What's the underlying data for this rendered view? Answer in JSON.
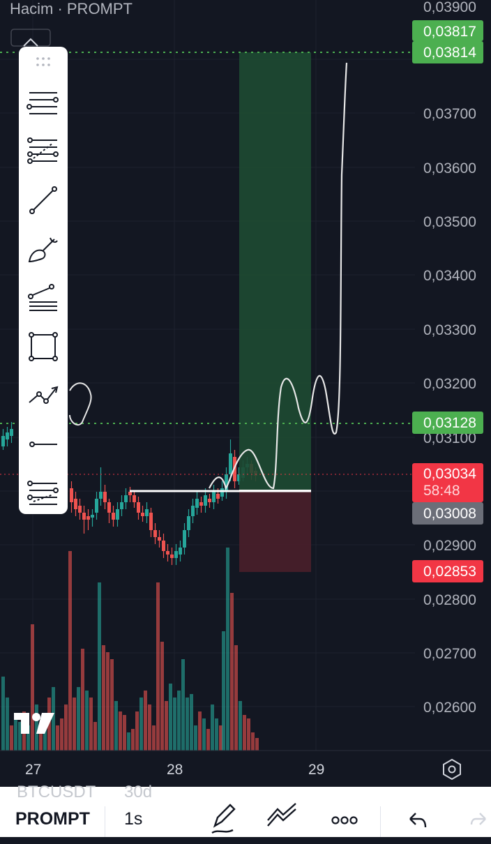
{
  "chart_title": "Hacim · PROMPT",
  "price_axis": {
    "levels": [
      "0,03900",
      "0,03700",
      "0,03600",
      "0,03500",
      "0,03400",
      "0,03300",
      "0,03200",
      "0,03100",
      "0,02900",
      "0,02800",
      "0,02700",
      "0,02600"
    ]
  },
  "time_axis": [
    "27",
    "28",
    "29"
  ],
  "price_tags": {
    "target_top": "0,03817",
    "target_dotted": "0,03814",
    "mid_dotted": "0,03128",
    "last_price": "0,03034",
    "countdown": "58:48",
    "entry": "0,03008",
    "stop": "0,02853"
  },
  "colors": {
    "background": "#131722",
    "bull": "#26a69a",
    "bear": "#ef5350",
    "profit_zone": "#1e4a32",
    "loss_zone": "#4a1f2a",
    "tag_green": "#4caf50",
    "tag_red": "#f23645",
    "tag_gray": "#6b6e78"
  },
  "drawing_tools": [
    {
      "name": "horizontal-lines-icon"
    },
    {
      "name": "fib-retracement-icon"
    },
    {
      "name": "trend-line-icon"
    },
    {
      "name": "brush-icon"
    },
    {
      "name": "pitchfork-icon"
    },
    {
      "name": "rectangle-icon"
    },
    {
      "name": "path-icon"
    },
    {
      "name": "ray-icon"
    },
    {
      "name": "fib-extension-icon"
    }
  ],
  "logo": "TV",
  "bottom_toolbar": {
    "symbol": "PROMPT",
    "interval": "1s",
    "ghost_symbol": "BTCUSDT",
    "ghost_interval": "30d",
    "icons": [
      "pen-icon",
      "drawing-tools-icon",
      "more-icon",
      "undo-icon",
      "redo-icon"
    ]
  },
  "settings_icon": "hexagon-settings-icon"
}
